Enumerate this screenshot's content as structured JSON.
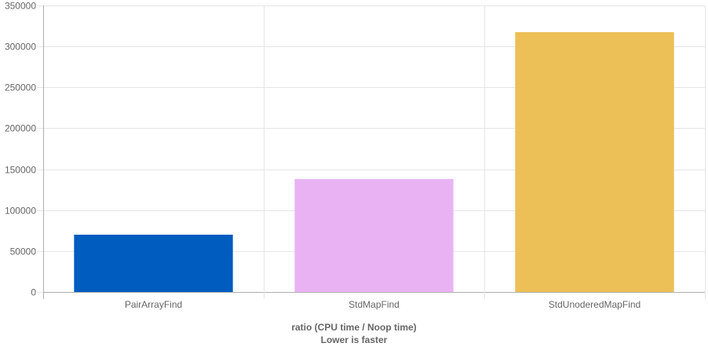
{
  "chart_data": {
    "type": "bar",
    "categories": [
      "PairArrayFind",
      "StdMapFind",
      "StdUnoderedMapFind"
    ],
    "series": [
      {
        "values": [
          70000,
          138000,
          317500
        ],
        "colors": [
          "#005cbf",
          "#e9b3f3",
          "#ecbf57"
        ]
      }
    ],
    "xlabel": "ratio (CPU time / Noop time)",
    "xlabel_sub": "Lower is faster",
    "ylim": [
      0,
      350000
    ],
    "yticks": [
      0,
      50000,
      100000,
      150000,
      200000,
      250000,
      300000,
      350000
    ],
    "ytick_labels": [
      "0",
      "50000",
      "100000",
      "150000",
      "200000",
      "250000",
      "300000",
      "350000"
    ],
    "grid": true,
    "legend": "none"
  }
}
